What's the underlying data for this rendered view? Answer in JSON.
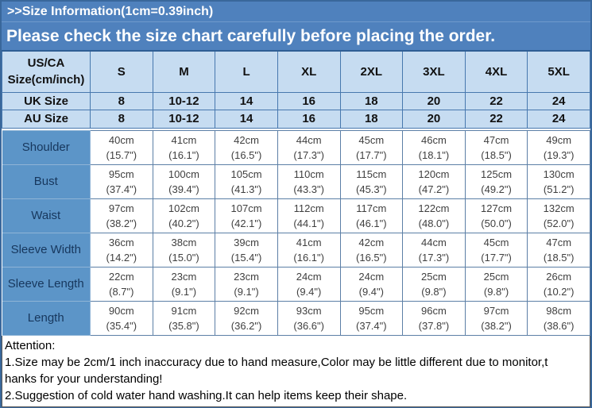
{
  "banner": {
    "line1": ">>Size Information(1cm=0.39inch)",
    "line2": "Please check the size chart carefully before placing the order."
  },
  "colors": {
    "banner_bg": "#4F81BD",
    "outer_border": "#39679B",
    "header_bg": "#C6DCF1",
    "header_grid": "#4778AE",
    "label_bg": "#5C95C8",
    "label_text": "#17375D",
    "body_grid": "#5C7FA6",
    "body_text": "#3F3F3F"
  },
  "size_chart": {
    "corner_label_line1": "US/CA",
    "corner_label_line2": "Size(cm/inch)",
    "size_headers": [
      "S",
      "M",
      "L",
      "XL",
      "2XL",
      "3XL",
      "4XL",
      "5XL"
    ],
    "region_rows": [
      {
        "label": "UK Size",
        "values": [
          "8",
          "10-12",
          "14",
          "16",
          "18",
          "20",
          "22",
          "24"
        ]
      },
      {
        "label": "AU Size",
        "values": [
          "8",
          "10-12",
          "14",
          "16",
          "18",
          "20",
          "22",
          "24"
        ]
      }
    ],
    "measurement_rows": [
      {
        "label": "Shoulder",
        "cells": [
          {
            "cm": "40cm",
            "inch": "(15.7\")"
          },
          {
            "cm": "41cm",
            "inch": "(16.1\")"
          },
          {
            "cm": "42cm",
            "inch": "(16.5\")"
          },
          {
            "cm": "44cm",
            "inch": "(17.3\")"
          },
          {
            "cm": "45cm",
            "inch": "(17.7\")"
          },
          {
            "cm": "46cm",
            "inch": "(18.1\")"
          },
          {
            "cm": "47cm",
            "inch": "(18.5\")"
          },
          {
            "cm": "49cm",
            "inch": "(19.3\")"
          }
        ]
      },
      {
        "label": "Bust",
        "cells": [
          {
            "cm": "95cm",
            "inch": "(37.4\")"
          },
          {
            "cm": "100cm",
            "inch": "(39.4\")"
          },
          {
            "cm": "105cm",
            "inch": "(41.3\")"
          },
          {
            "cm": "110cm",
            "inch": "(43.3\")"
          },
          {
            "cm": "115cm",
            "inch": "(45.3\")"
          },
          {
            "cm": "120cm",
            "inch": "(47.2\")"
          },
          {
            "cm": "125cm",
            "inch": "(49.2\")"
          },
          {
            "cm": "130cm",
            "inch": "(51.2\")"
          }
        ]
      },
      {
        "label": "Waist",
        "cells": [
          {
            "cm": "97cm",
            "inch": "(38.2\")"
          },
          {
            "cm": "102cm",
            "inch": "(40.2\")"
          },
          {
            "cm": "107cm",
            "inch": "(42.1\")"
          },
          {
            "cm": "112cm",
            "inch": "(44.1\")"
          },
          {
            "cm": "117cm",
            "inch": "(46.1\")"
          },
          {
            "cm": "122cm",
            "inch": "(48.0\")"
          },
          {
            "cm": "127cm",
            "inch": "(50.0\")"
          },
          {
            "cm": "132cm",
            "inch": "(52.0\")"
          }
        ]
      },
      {
        "label": "Sleeve Width",
        "cells": [
          {
            "cm": "36cm",
            "inch": "(14.2\")"
          },
          {
            "cm": "38cm",
            "inch": "(15.0\")"
          },
          {
            "cm": "39cm",
            "inch": "(15.4\")"
          },
          {
            "cm": "41cm",
            "inch": "(16.1\")"
          },
          {
            "cm": "42cm",
            "inch": "(16.5\")"
          },
          {
            "cm": "44cm",
            "inch": "(17.3\")"
          },
          {
            "cm": "45cm",
            "inch": "(17.7\")"
          },
          {
            "cm": "47cm",
            "inch": "(18.5\")"
          }
        ]
      },
      {
        "label": "Sleeve Length",
        "cells": [
          {
            "cm": "22cm",
            "inch": "(8.7\")"
          },
          {
            "cm": "23cm",
            "inch": "(9.1\")"
          },
          {
            "cm": "23cm",
            "inch": "(9.1\")"
          },
          {
            "cm": "24cm",
            "inch": "(9.4\")"
          },
          {
            "cm": "24cm",
            "inch": "(9.4\")"
          },
          {
            "cm": "25cm",
            "inch": "(9.8\")"
          },
          {
            "cm": "25cm",
            "inch": "(9.8\")"
          },
          {
            "cm": "26cm",
            "inch": "(10.2\")"
          }
        ]
      },
      {
        "label": "Length",
        "cells": [
          {
            "cm": "90cm",
            "inch": "(35.4\")"
          },
          {
            "cm": "91cm",
            "inch": "(35.8\")"
          },
          {
            "cm": "92cm",
            "inch": "(36.2\")"
          },
          {
            "cm": "93cm",
            "inch": "(36.6\")"
          },
          {
            "cm": "95cm",
            "inch": "(37.4\")"
          },
          {
            "cm": "96cm",
            "inch": "(37.8\")"
          },
          {
            "cm": "97cm",
            "inch": "(38.2\")"
          },
          {
            "cm": "98cm",
            "inch": "(38.6\")"
          }
        ]
      }
    ]
  },
  "attention": {
    "lines": [
      "Attention:",
      "1.Size may be 2cm/1 inch inaccuracy due to hand measure,Color may be little different due to monitor,t",
      "hanks for your understanding!",
      "2.Suggestion of cold water hand washing.It can help items keep their shape."
    ]
  }
}
